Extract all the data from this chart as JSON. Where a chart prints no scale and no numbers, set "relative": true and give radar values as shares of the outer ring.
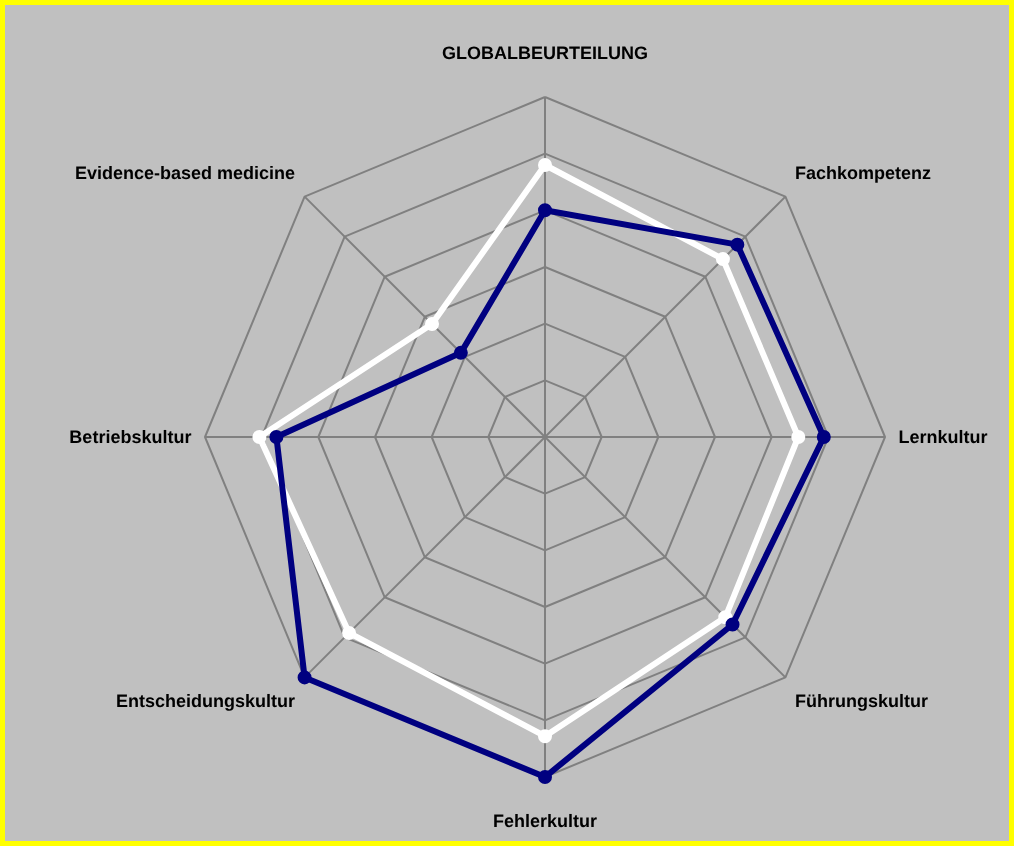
{
  "chart_data": {
    "type": "radar",
    "relative": true,
    "grid": true,
    "marker": "circle",
    "categories": [
      "GLOBALBEURTEILUNG",
      "Fachkompetenz",
      "Lernkultur",
      "Führungskultur",
      "Fehlerkultur",
      "Entscheidungskultur",
      "Betriebskultur",
      "Evidence-based medicine"
    ],
    "series": [
      {
        "color": "#ffffff",
        "values": [
          0.8,
          0.74,
          0.745,
          0.75,
          0.88,
          0.815,
          0.84,
          0.47
        ]
      },
      {
        "color": "#000080",
        "values": [
          0.667,
          0.8,
          0.82,
          0.78,
          1.0,
          1.0,
          0.79,
          0.35
        ]
      }
    ]
  }
}
